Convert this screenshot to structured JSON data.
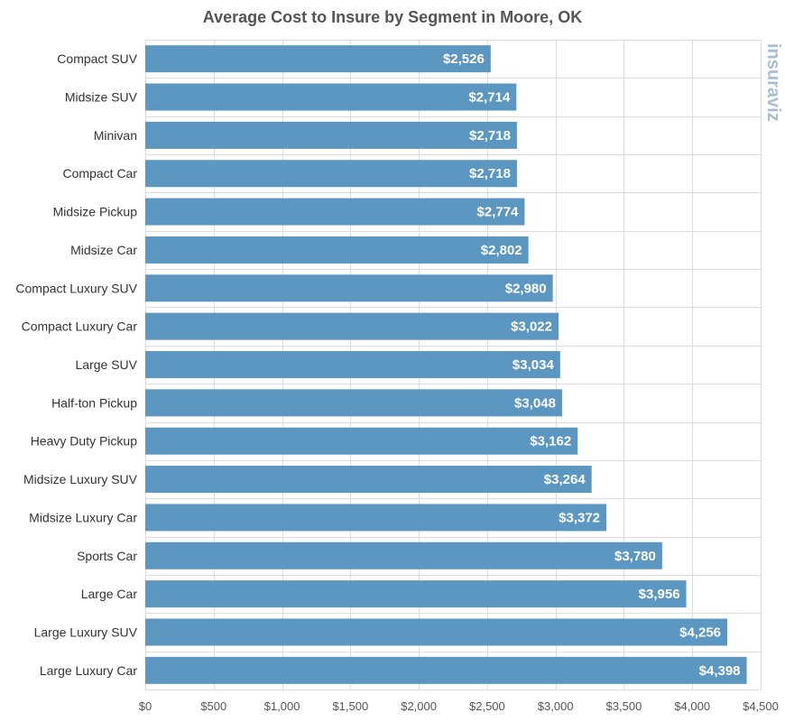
{
  "chart_data": {
    "type": "bar",
    "orientation": "horizontal",
    "title": "Average Cost to Insure by Segment in Moore, OK",
    "categories": [
      "Compact SUV",
      "Midsize SUV",
      "Minivan",
      "Compact Car",
      "Midsize Pickup",
      "Midsize Car",
      "Compact Luxury SUV",
      "Compact Luxury Car",
      "Large SUV",
      "Half-ton Pickup",
      "Heavy Duty Pickup",
      "Midsize Luxury SUV",
      "Midsize Luxury Car",
      "Sports Car",
      "Large Car",
      "Large Luxury SUV",
      "Large Luxury Car"
    ],
    "values": [
      2526,
      2714,
      2718,
      2718,
      2774,
      2802,
      2980,
      3022,
      3034,
      3048,
      3162,
      3264,
      3372,
      3780,
      3956,
      4256,
      4398
    ],
    "data_labels": [
      "$2,526",
      "$2,714",
      "$2,718",
      "$2,718",
      "$2,774",
      "$2,802",
      "$2,980",
      "$3,022",
      "$3,034",
      "$3,048",
      "$3,162",
      "$3,264",
      "$3,372",
      "$3,780",
      "$3,956",
      "$4,256",
      "$4,398"
    ],
    "xlim": [
      0,
      4500
    ],
    "x_ticks": [
      0,
      500,
      1000,
      1500,
      2000,
      2500,
      3000,
      3500,
      4000,
      4500
    ],
    "x_tick_labels": [
      "$0",
      "$500",
      "$1,000",
      "$1,500",
      "$2,000",
      "$2,500",
      "$3,000",
      "$3,500",
      "$4,000",
      "$4,500"
    ],
    "grid": true,
    "bar_color": "#5b97c0",
    "watermark": "insuraviz"
  }
}
